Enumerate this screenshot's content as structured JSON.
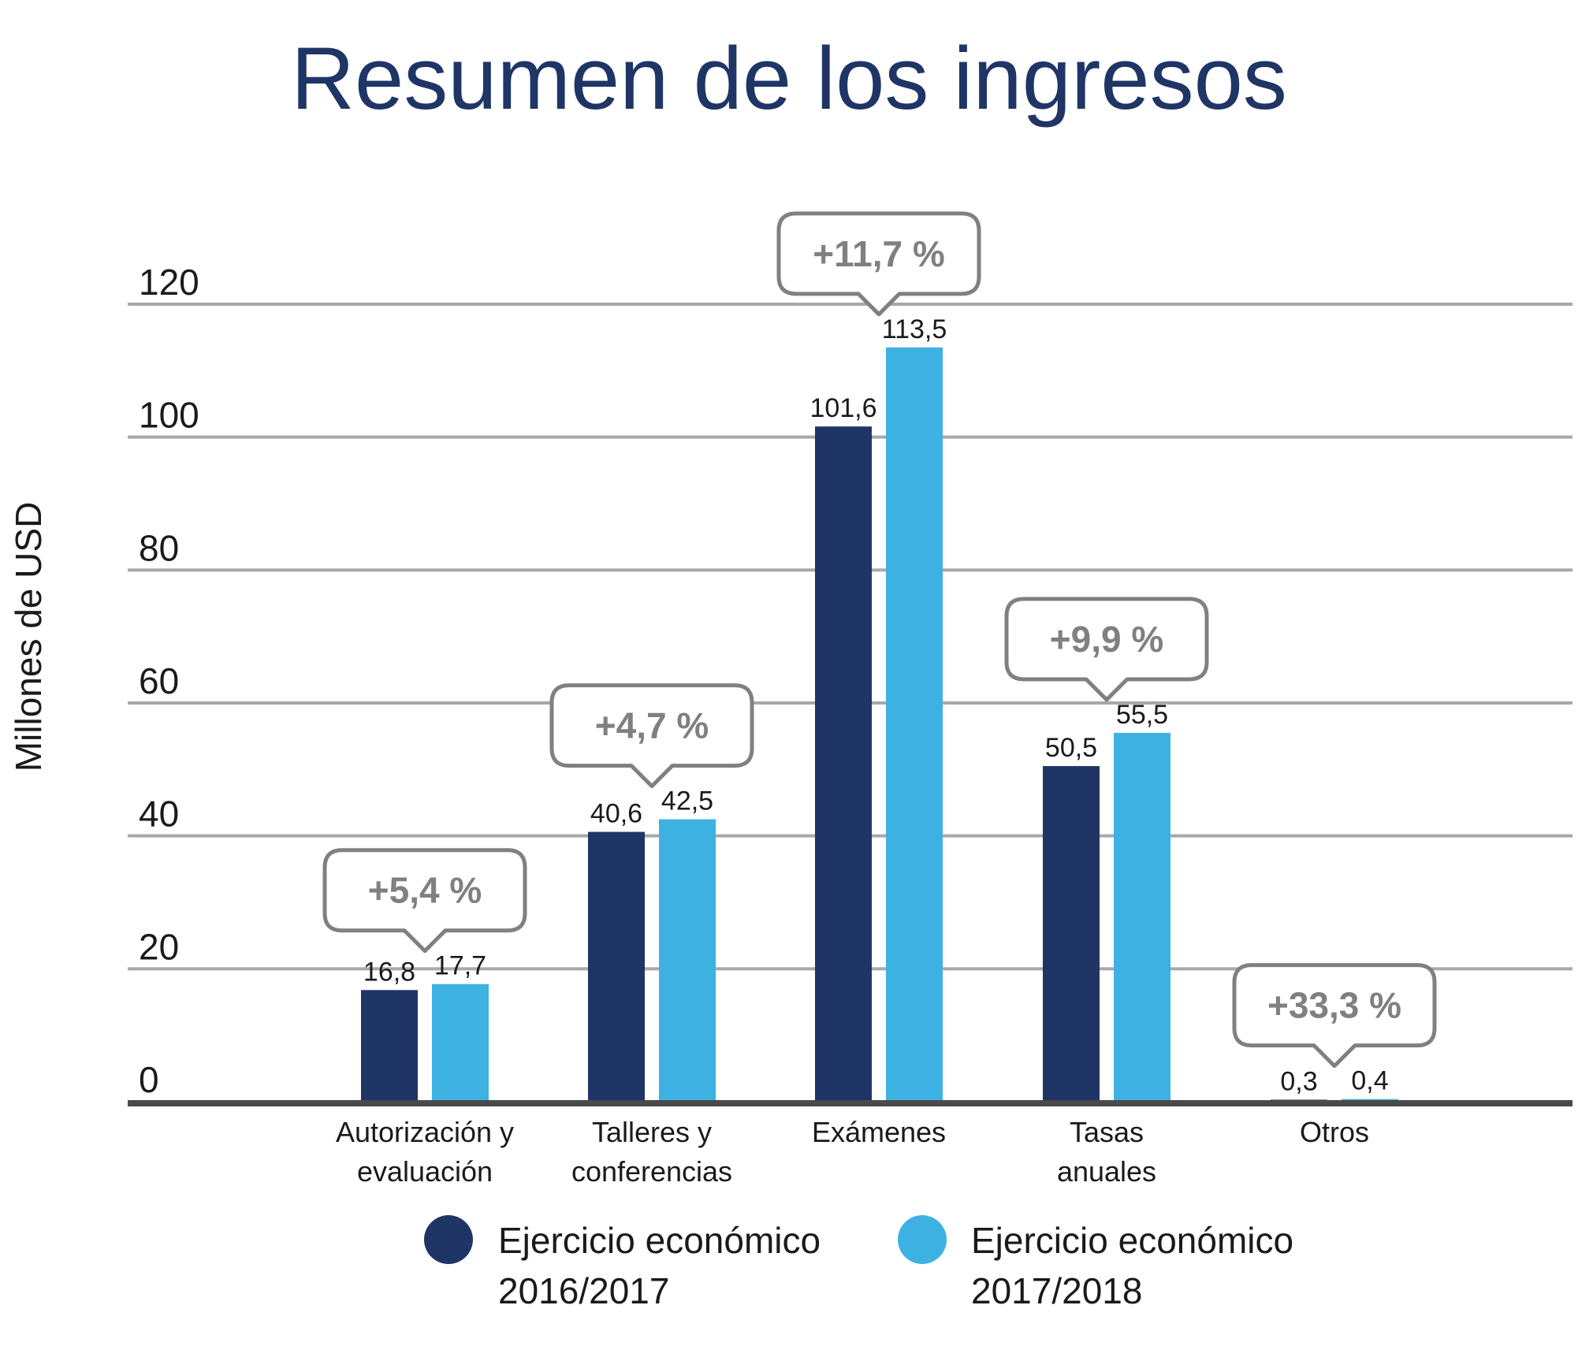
{
  "chart_data": {
    "type": "bar",
    "title": "Resumen de los ingresos",
    "ylabel": "Millones de USD",
    "xlabel": "",
    "ylim": [
      0,
      120
    ],
    "yticks": [
      0,
      20,
      40,
      60,
      80,
      100,
      120
    ],
    "grid": true,
    "categories": [
      [
        "Autorización y",
        "evaluación"
      ],
      [
        "Talleres y",
        "conferencias"
      ],
      [
        "Exámenes"
      ],
      [
        "Tasas",
        "anuales"
      ],
      [
        "Otros"
      ]
    ],
    "series": [
      {
        "name": [
          "Ejercicio económico",
          "2016/2017"
        ],
        "color": "#1f3566",
        "values": [
          16.8,
          40.6,
          101.6,
          50.5,
          0.3
        ],
        "labels": [
          "16,8",
          "40,6",
          "101,6",
          "50,5",
          "0,3"
        ]
      },
      {
        "name": [
          "Ejercicio económico",
          "2017/2018"
        ],
        "color": "#3eb1e3",
        "values": [
          17.7,
          42.5,
          113.5,
          55.5,
          0.4
        ],
        "labels": [
          "17,7",
          "42,5",
          "113,5",
          "55,5",
          "0,4"
        ]
      }
    ],
    "annotations": [
      "+5,4 %",
      "+4,7 %",
      "+11,7 %",
      "+9,9 %",
      "+33,3 %"
    ],
    "legend_position": "bottom"
  },
  "colors": {
    "title": "#1f3566",
    "grid": "#a8a8a8",
    "axis": "#4a4a4a",
    "annotation": "#808080",
    "text": "#1a1a1a"
  }
}
